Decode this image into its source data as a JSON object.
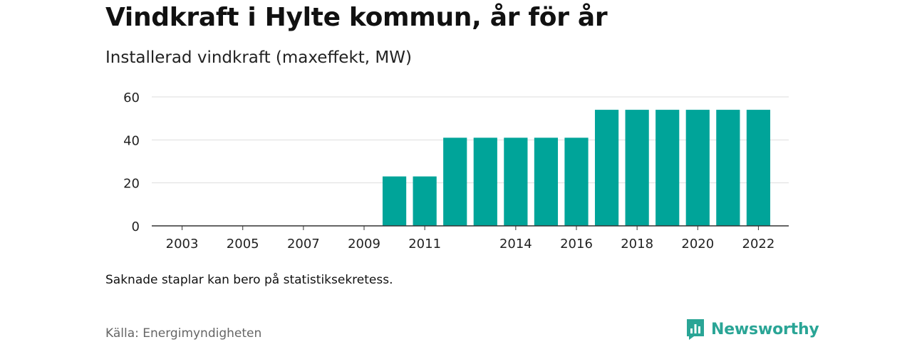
{
  "title": "Vindkraft i Hylte kommun, år för år",
  "subtitle": "Installerad vindkraft (maxeffekt, MW)",
  "note": "Saknade staplar kan bero på statistiksekretess.",
  "source": "Källa: Energimyndigheten",
  "brand": {
    "name": "Newsworthy",
    "icon": "newsworthy-logo-icon",
    "color": "#2aa596"
  },
  "chart_data": {
    "type": "bar",
    "categories": [
      "2003",
      "2004",
      "2005",
      "2006",
      "2007",
      "2008",
      "2009",
      "2010",
      "2011",
      "2012",
      "2013",
      "2014",
      "2015",
      "2016",
      "2017",
      "2018",
      "2019",
      "2020",
      "2021",
      "2022"
    ],
    "values": [
      0,
      0,
      0,
      0,
      0,
      0,
      0,
      23,
      23,
      41,
      41,
      41,
      41,
      41,
      54,
      54,
      54,
      54,
      54,
      54
    ],
    "x_tick_labels": [
      "2003",
      "2005",
      "2007",
      "2009",
      "2011",
      "2014",
      "2016",
      "2018",
      "2020",
      "2022"
    ],
    "y_ticks": [
      0,
      20,
      40,
      60
    ],
    "ylim": [
      0,
      60
    ],
    "bar_color": "#00a499",
    "grid": true,
    "legend": "none",
    "xlabel": "",
    "ylabel": ""
  }
}
